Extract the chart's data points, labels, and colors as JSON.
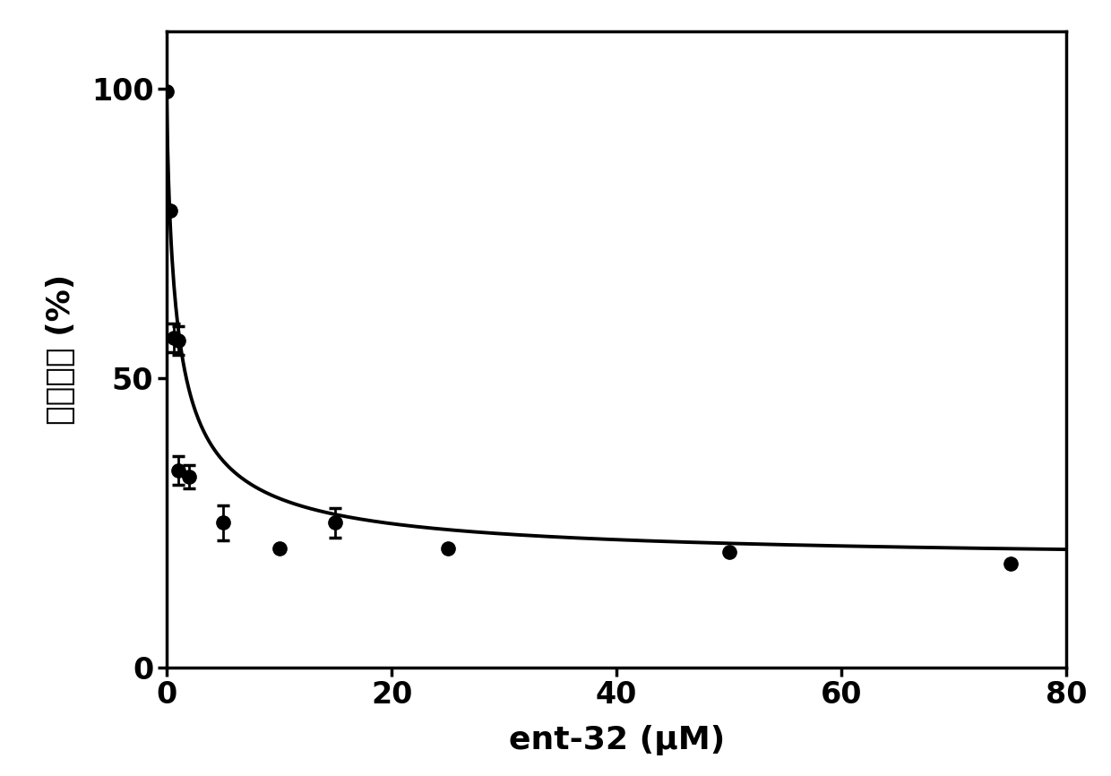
{
  "data_points_x": [
    0.0,
    0.3,
    0.6,
    1.0,
    1.0,
    2.0,
    5.0,
    10.0,
    15.0,
    25.0,
    50.0,
    75.0
  ],
  "data_points_y": [
    99.5,
    79.0,
    57.0,
    56.5,
    34.0,
    33.0,
    25.0,
    20.5,
    25.0,
    20.5,
    20.0,
    18.0
  ],
  "data_points_yerr": [
    0.0,
    0.0,
    2.5,
    2.5,
    2.5,
    2.0,
    3.0,
    0.0,
    2.5,
    0.0,
    0.0,
    0.0
  ],
  "xlabel": "ent-32 (μM)",
  "ylabel": "残余活性 (%)",
  "xlim": [
    0,
    80
  ],
  "ylim": [
    0,
    110
  ],
  "xticks": [
    0,
    20,
    40,
    60,
    80
  ],
  "yticks": [
    0,
    50,
    100
  ],
  "background_color": "#ffffff",
  "line_color": "#000000",
  "marker_color": "#000000",
  "marker_size": 11,
  "linewidth": 2.8,
  "xlabel_fontsize": 26,
  "ylabel_fontsize": 26,
  "tick_fontsize": 24,
  "tick_fontweight": "bold",
  "label_fontweight": "bold"
}
